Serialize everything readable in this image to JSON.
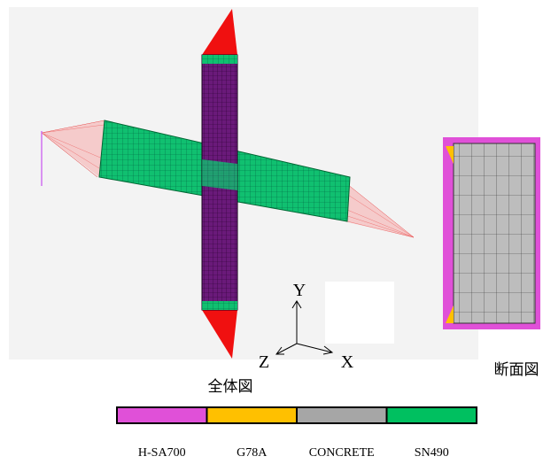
{
  "axes": {
    "y": "Y",
    "z": "Z",
    "x": "X"
  },
  "captions": {
    "whole": "全体図",
    "section": "断面図"
  },
  "legend": [
    {
      "name": "H-SA700",
      "color": "#e050d8"
    },
    {
      "name": "G78A",
      "color": "#ffc000"
    },
    {
      "name": "CONCRETE",
      "color": "#a6a6a6"
    },
    {
      "name": "SN490",
      "color": "#00c060"
    }
  ]
}
